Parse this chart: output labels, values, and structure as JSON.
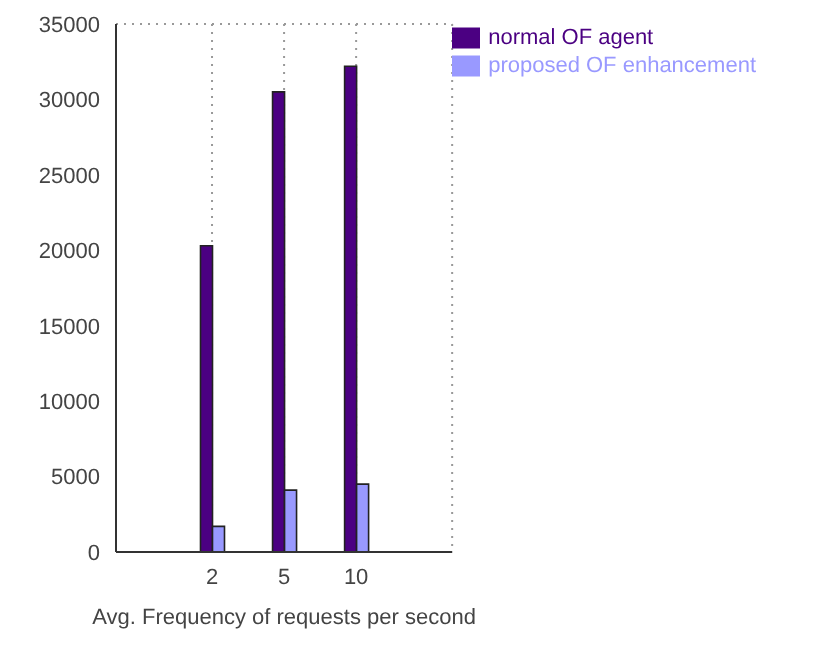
{
  "chart_data": {
    "type": "bar",
    "xlabel": "Avg. Frequency of requests per second",
    "categories": [
      "2",
      "5",
      "10"
    ],
    "series": [
      {
        "name": "normal OF agent",
        "color": "#4b0082",
        "values": [
          20300,
          30500,
          32200
        ]
      },
      {
        "name": "proposed OF enhancement",
        "color": "#9999ff",
        "values": [
          1700,
          4100,
          4500
        ]
      }
    ],
    "ylim": [
      0,
      35000
    ],
    "yticks": [
      0,
      5000,
      10000,
      15000,
      20000,
      25000,
      30000,
      35000
    ],
    "grid": true,
    "legend": "top right"
  }
}
